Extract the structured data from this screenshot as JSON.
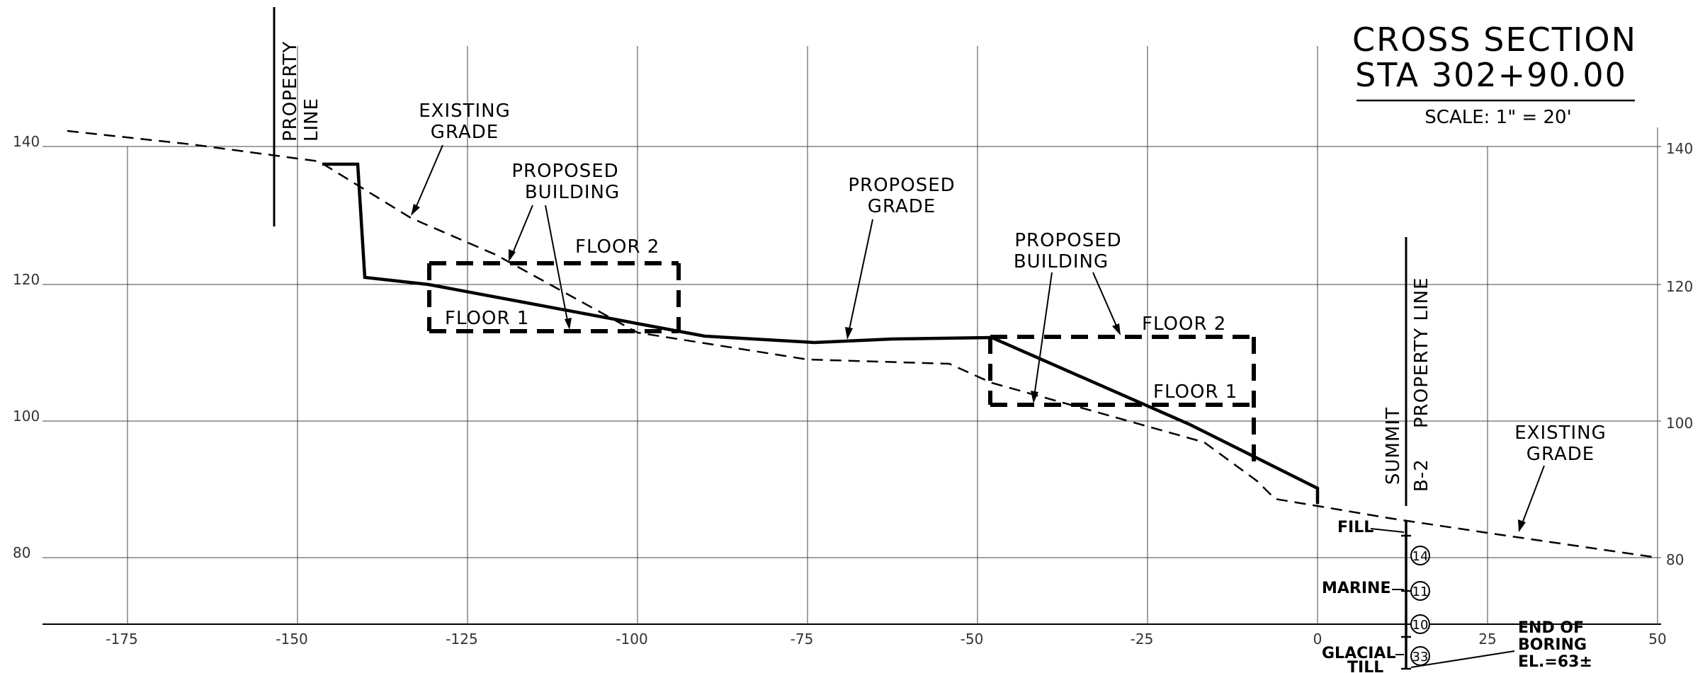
{
  "title": {
    "line1": "CROSS SECTION",
    "line2": "STA 302+90.00",
    "scale": "SCALE: 1\" = 20'"
  },
  "axes": {
    "x_ticks": [
      "-175",
      "-150",
      "-125",
      "-100",
      "-75",
      "-50",
      "-25",
      "0",
      "25",
      "50"
    ],
    "y_ticks_left": [
      "140",
      "120",
      "100",
      "80"
    ],
    "y_ticks_right": [
      "140",
      "120",
      "100",
      "80"
    ]
  },
  "labels": {
    "property_line_left_1": "PROPERTY",
    "property_line_left_2": "LINE",
    "existing_grade_left_1": "EXISTING",
    "existing_grade_left_2": "GRADE",
    "proposed_building_left_1": "PROPOSED",
    "proposed_building_left_2": "BUILDING",
    "floor2_left": "FLOOR 2",
    "floor1_left": "FLOOR 1",
    "proposed_grade_1": "PROPOSED",
    "proposed_grade_2": "GRADE",
    "proposed_building_right_1": "PROPOSED",
    "proposed_building_right_2": "BUILDING",
    "floor2_right": "FLOOR 2",
    "floor1_right": "FLOOR 1",
    "property_line_right": "PROPERTY LINE",
    "summit": "SUMMIT",
    "b2": "B-2",
    "existing_grade_right_1": "EXISTING",
    "existing_grade_right_2": "GRADE",
    "fill": "FILL",
    "marine": "MARINE",
    "glacial_1": "GLACIAL",
    "glacial_2": "TILL",
    "end_boring_1": "END OF",
    "end_boring_2": "BORING",
    "end_boring_3": "EL.=63±"
  },
  "boring_blows": [
    "14",
    "11",
    "10",
    "33"
  ]
}
